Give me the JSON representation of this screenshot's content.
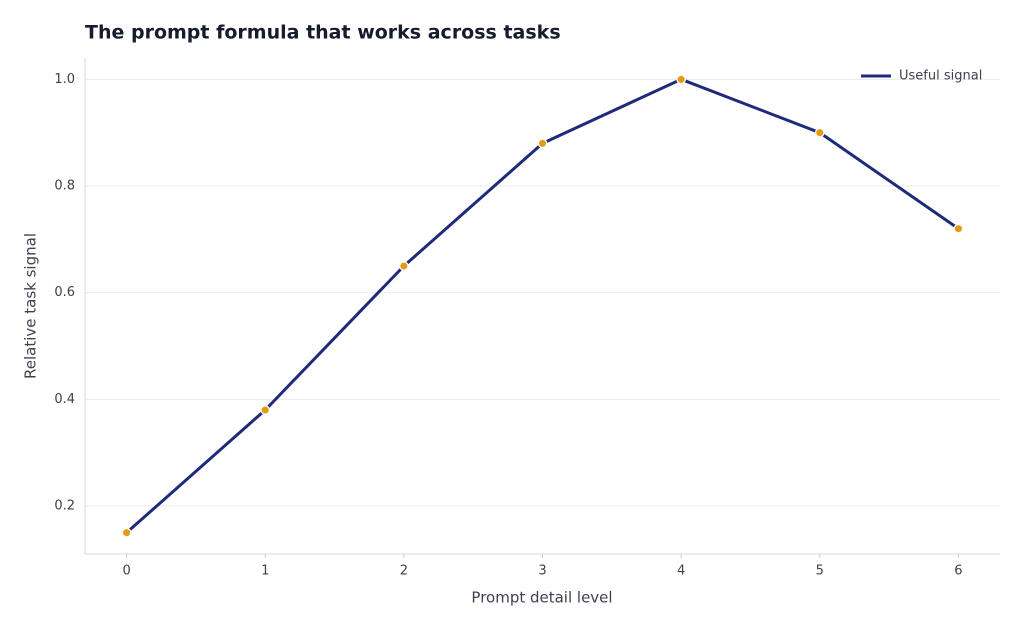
{
  "chart_data": {
    "type": "line",
    "title": "The prompt formula that works across tasks",
    "x_label": "Prompt detail level",
    "y_label": "Relative task signal",
    "x": [
      0,
      1,
      2,
      3,
      4,
      5,
      6
    ],
    "series": [
      {
        "name": "Useful signal",
        "color": "#1f2a7a",
        "marker_color": "#e39b14",
        "values": [
          0.15,
          0.38,
          0.65,
          0.88,
          1.0,
          0.9,
          0.72
        ]
      }
    ],
    "xlim": [
      -0.3,
      6.3
    ],
    "xticks": [
      0,
      1,
      2,
      3,
      4,
      5,
      6
    ],
    "ylim": [
      0.11,
      1.04
    ],
    "yticks": [
      0.2,
      0.4,
      0.6,
      0.8,
      {
        "value": 1,
        "label": "1.0"
      }
    ],
    "grid": true,
    "legend": "upper-right"
  }
}
